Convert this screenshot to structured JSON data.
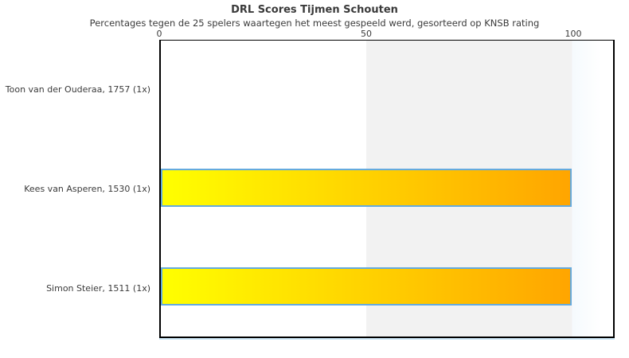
{
  "chart_data": {
    "type": "bar",
    "orientation": "horizontal",
    "title": "DRL Scores Tijmen Schouten",
    "subtitle": "Percentages tegen de 25 spelers waartegen het meest gespeeld werd, gesorteerd op KNSB rating",
    "categories": [
      "Toon van der Ouderaa, 1757 (1x)",
      "Kees van Asperen, 1530 (1x)",
      "Simon Steier, 1511 (1x)"
    ],
    "values": [
      0,
      100,
      100
    ],
    "x_ticks": [
      0,
      50,
      100
    ],
    "xlim": [
      0,
      110
    ],
    "axis_position": "top",
    "grid": false,
    "legend": false,
    "colors": {
      "bar_gradient_start": "#ffff00",
      "bar_gradient_end": "#ffa500",
      "bar_border": "#64aade",
      "band_fill": "#f2f2f2",
      "after_band_tint": "#f5fafd",
      "plot_border": "#000000",
      "underline": "#cde7f6",
      "text": "#3a3a3a"
    },
    "background_band": {
      "from": 50,
      "to": 100
    }
  }
}
